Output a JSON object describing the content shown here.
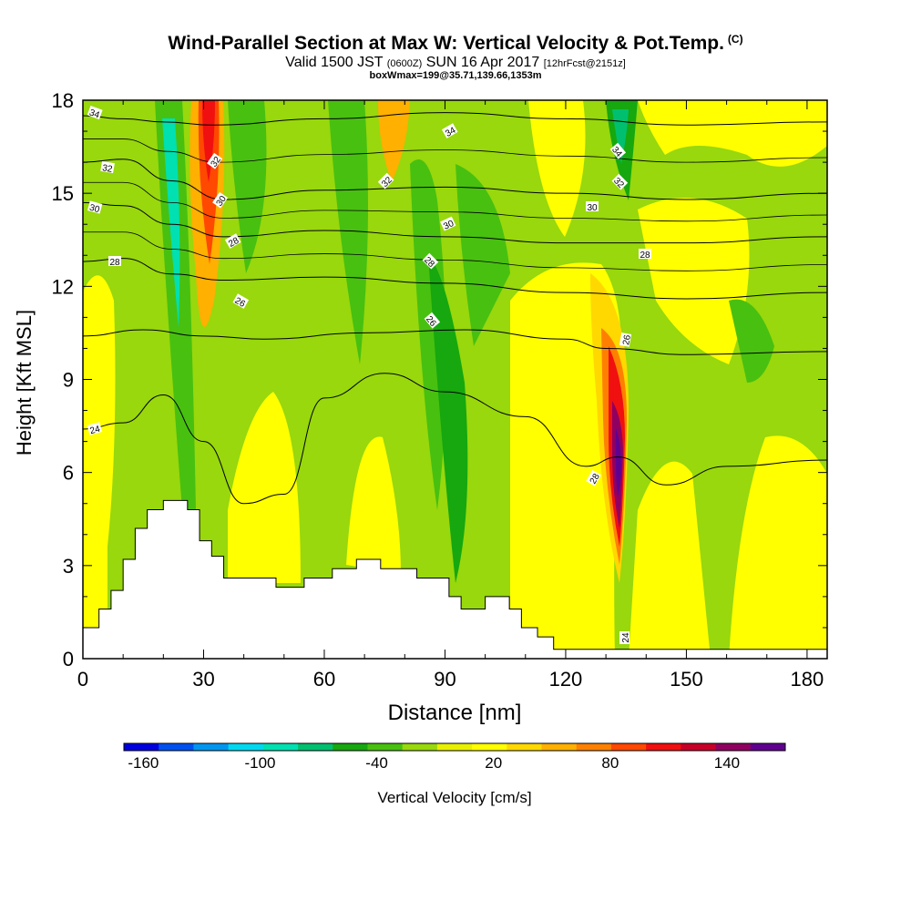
{
  "header": {
    "title": "Wind-Parallel Section at Max W: Vertical Velocity & Pot.Temp.",
    "title_unit": "(C)",
    "valid_prefix": "Valid 1500 JST",
    "valid_utc": "(0600Z)",
    "valid_date": "SUN 16 Apr 2017",
    "forecast": "[12hrFcst@2151z]",
    "box": "boxWmax=199@35.71,139.66,1353m"
  },
  "chart_data": {
    "type": "heatmap",
    "xlabel": "Distance [nm]",
    "ylabel": "Height [Kft MSL]",
    "xlim": [
      0,
      185
    ],
    "ylim": [
      0,
      18
    ],
    "xticks": [
      0,
      30,
      60,
      90,
      120,
      150,
      180
    ],
    "yticks": [
      0,
      3,
      6,
      9,
      12,
      15,
      18
    ],
    "colorbar": {
      "label": "Vertical Velocity [cm/s]",
      "tick_labels": [
        "-160",
        "-100",
        "-40",
        "20",
        "80",
        "140"
      ],
      "tick_values": [
        -160,
        -100,
        -40,
        20,
        80,
        140
      ],
      "range": [
        -170,
        170
      ],
      "colors": [
        "#0000e0",
        "#0050f0",
        "#0096f0",
        "#00d8f0",
        "#00e0b0",
        "#00c070",
        "#16a80e",
        "#48c010",
        "#98d80c",
        "#e8f000",
        "#ffff00",
        "#ffd800",
        "#ffb000",
        "#ff8000",
        "#ff4800",
        "#f01010",
        "#c80028",
        "#900060",
        "#600090"
      ]
    },
    "terrain": [
      [
        0,
        1
      ],
      [
        4,
        1
      ],
      [
        4,
        1.6
      ],
      [
        7,
        1.6
      ],
      [
        7,
        2.2
      ],
      [
        10,
        2.2
      ],
      [
        10,
        3.2
      ],
      [
        13,
        3.2
      ],
      [
        13,
        4.2
      ],
      [
        16,
        4.2
      ],
      [
        16,
        4.8
      ],
      [
        20,
        4.8
      ],
      [
        20,
        5.1
      ],
      [
        26,
        5.1
      ],
      [
        26,
        4.8
      ],
      [
        29,
        4.8
      ],
      [
        29,
        3.8
      ],
      [
        32,
        3.8
      ],
      [
        32,
        3.3
      ],
      [
        35,
        3.3
      ],
      [
        35,
        2.6
      ],
      [
        48,
        2.6
      ],
      [
        48,
        2.3
      ],
      [
        55,
        2.3
      ],
      [
        55,
        2.6
      ],
      [
        62,
        2.6
      ],
      [
        62,
        2.9
      ],
      [
        68,
        2.9
      ],
      [
        68,
        3.2
      ],
      [
        74,
        3.2
      ],
      [
        74,
        2.9
      ],
      [
        83,
        2.9
      ],
      [
        83,
        2.6
      ],
      [
        91,
        2.6
      ],
      [
        91,
        2
      ],
      [
        94,
        2
      ],
      [
        94,
        1.6
      ],
      [
        100,
        1.6
      ],
      [
        100,
        2
      ],
      [
        106,
        2
      ],
      [
        106,
        1.6
      ],
      [
        109,
        1.6
      ],
      [
        109,
        1
      ],
      [
        113,
        1
      ],
      [
        113,
        0.7
      ],
      [
        117,
        0.7
      ],
      [
        117,
        0.3
      ],
      [
        185,
        0.3
      ]
    ],
    "isotherms": [
      {
        "label": "34",
        "points": [
          [
            0,
            17.5
          ],
          [
            10,
            17.4
          ],
          [
            20,
            17.3
          ],
          [
            32,
            17.2
          ],
          [
            60,
            17.4
          ],
          [
            90,
            17.6
          ],
          [
            120,
            17.4
          ],
          [
            150,
            17.2
          ],
          [
            185,
            17.3
          ]
        ]
      },
      {
        "label": "32",
        "points": [
          [
            0,
            16
          ],
          [
            10,
            16.1
          ],
          [
            22,
            15.4
          ],
          [
            35,
            14.8
          ],
          [
            60,
            15.1
          ],
          [
            90,
            15.2
          ],
          [
            120,
            15
          ],
          [
            150,
            14.8
          ],
          [
            185,
            15
          ]
        ]
      },
      {
        "label": "30",
        "points": [
          [
            0,
            14.7
          ],
          [
            10,
            14.6
          ],
          [
            22,
            14
          ],
          [
            35,
            13.6
          ],
          [
            60,
            13.8
          ],
          [
            90,
            13.6
          ],
          [
            120,
            13.4
          ],
          [
            150,
            13.4
          ],
          [
            185,
            13.6
          ]
        ]
      },
      {
        "label": "28",
        "points": [
          [
            0,
            12.8
          ],
          [
            10,
            12.9
          ],
          [
            22,
            12.4
          ],
          [
            35,
            12.2
          ],
          [
            60,
            12.3
          ],
          [
            90,
            12.1
          ],
          [
            120,
            11.8
          ],
          [
            150,
            11.6
          ],
          [
            185,
            11.8
          ]
        ]
      },
      {
        "label": "26",
        "points": [
          [
            0,
            10.4
          ],
          [
            15,
            10.6
          ],
          [
            30,
            10.4
          ],
          [
            45,
            10.3
          ],
          [
            70,
            10.5
          ],
          [
            95,
            10.6
          ],
          [
            120,
            10.3
          ],
          [
            130,
            10
          ],
          [
            150,
            9.8
          ],
          [
            185,
            9.9
          ]
        ]
      },
      {
        "label": "24",
        "points": [
          [
            0,
            7.4
          ],
          [
            10,
            7.6
          ],
          [
            20,
            8.5
          ],
          [
            30,
            7
          ],
          [
            40,
            5
          ],
          [
            50,
            5.3
          ],
          [
            60,
            8.4
          ],
          [
            75,
            9.2
          ],
          [
            90,
            8.6
          ],
          [
            110,
            7.8
          ],
          [
            125,
            6.2
          ],
          [
            133,
            6.5
          ],
          [
            145,
            5.6
          ],
          [
            160,
            6.2
          ],
          [
            185,
            6.4
          ]
        ]
      }
    ],
    "colorbar_value_series": [
      -160,
      -150,
      -140,
      -130,
      -120,
      -110,
      -100,
      -90,
      -80,
      -70,
      -60,
      -50,
      -40,
      -30,
      -20,
      -10,
      0,
      10,
      20,
      30,
      40,
      50,
      60,
      70,
      80,
      90,
      100,
      110,
      120,
      130,
      140,
      150,
      160
    ]
  },
  "theta_labels": {
    "l34a": "34",
    "l34b": "34",
    "l34c": "34",
    "l32a": "32",
    "l32b": "32",
    "l32c": "32",
    "l32d": "32",
    "l30a": "30",
    "l30b": "30",
    "l30c": "30",
    "l30d": "30",
    "l28a": "28",
    "l28b": "28",
    "l28c": "28",
    "l28d": "28",
    "l26a": "26",
    "l26b": "26",
    "l26c": "26",
    "l24a": "24",
    "l24b": "24",
    "l28e": "28"
  }
}
